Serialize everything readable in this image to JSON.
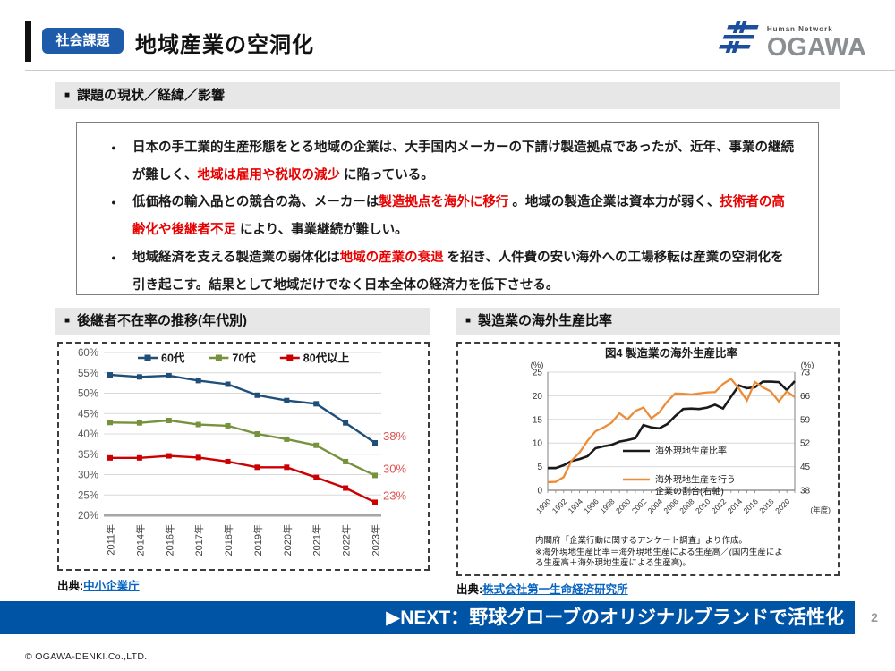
{
  "header": {
    "badge": "社会課題",
    "title": "地域産業の空洞化",
    "logo": {
      "tagline": "Human Network",
      "wordmark": "OGAWA"
    }
  },
  "sections": {
    "marker": "■",
    "issues_title": "課題の現状／経緯／影響",
    "left_chart_title": "後継者不在率の推移(年代別)",
    "right_chart_title": "製造業の海外生産比率"
  },
  "points": {
    "bullet_char": "●",
    "red_color": "#e60000",
    "bullets": [
      {
        "segments": [
          {
            "t": "日本の手工業的生産形態をとる地域の企業は、大手国内メーカーの下請け製造拠点であったが、近年、事業の継続が難しく、",
            "red": false
          },
          {
            "t": "地域は雇用や税収の減少",
            "red": true
          },
          {
            "t": " に陥っている。",
            "red": false
          }
        ]
      },
      {
        "segments": [
          {
            "t": "低価格の輸入品との競合の為、メーカーは",
            "red": false
          },
          {
            "t": "製造拠点を海外に移行",
            "red": true
          },
          {
            "t": " 。地域の製造企業は資本力が弱く、",
            "red": false
          },
          {
            "t": "技術者の高齢化や後継者不足",
            "red": true
          },
          {
            "t": " により、事業継続が難しい。",
            "red": false
          }
        ]
      },
      {
        "segments": [
          {
            "t": "地域経済を支える製造業の弱体化は",
            "red": false
          },
          {
            "t": "地域の産業の衰退",
            "red": true
          },
          {
            "t": " を招き、人件費の安い海外への工場移転は産業の空洞化を引き起こす。結果として地域だけでなく日本全体の経済力を低下させる。",
            "red": false
          }
        ]
      }
    ]
  },
  "sources": {
    "label": "出典:",
    "left_link": "中小企業庁",
    "right_link": "株式会社第一生命経済研究所"
  },
  "footer": {
    "next_banner": "▶NEXT：野球グローブのオリジナルブランドで活性化",
    "page_number": "2",
    "copyright": "© OGAWA-DENKI.Co.,LTD."
  },
  "chart_data": [
    {
      "type": "line",
      "title": "後継者不在率の推移(年代別)",
      "categories": [
        "2011年",
        "2014年",
        "2016年",
        "2017年",
        "2018年",
        "2019年",
        "2020年",
        "2021年",
        "2022年",
        "2023年"
      ],
      "ylim": [
        20,
        60
      ],
      "ytick_step": 5,
      "ytick_suffix": "%",
      "grid": true,
      "legend_position": "top",
      "end_label_color": "#e05252",
      "series": [
        {
          "name": "60代",
          "color": "#1f4e79",
          "values": [
            54.5,
            54.0,
            54.3,
            53.1,
            52.2,
            49.5,
            48.2,
            47.4,
            42.7,
            37.8
          ],
          "end_label": "38%"
        },
        {
          "name": "70代",
          "color": "#76923c",
          "values": [
            42.8,
            42.7,
            43.3,
            42.3,
            42.0,
            40.0,
            38.7,
            37.2,
            33.2,
            29.8
          ],
          "end_label": "30%"
        },
        {
          "name": "80代以上",
          "color": "#cc0000",
          "values": [
            34.1,
            34.1,
            34.6,
            34.2,
            33.2,
            31.8,
            31.8,
            29.3,
            26.7,
            23.2
          ],
          "end_label": "23%"
        }
      ]
    },
    {
      "type": "line",
      "title": "図4  製造業の海外生産比率",
      "x": [
        1990,
        1991,
        1992,
        1993,
        1994,
        1995,
        1996,
        1997,
        1998,
        1999,
        2000,
        2001,
        2002,
        2003,
        2004,
        2005,
        2006,
        2007,
        2008,
        2009,
        2010,
        2011,
        2012,
        2013,
        2014,
        2015,
        2016,
        2017,
        2018,
        2019,
        2020,
        2021
      ],
      "xtick_labels": [
        "1990",
        "1992",
        "1994",
        "1996",
        "1998",
        "2000",
        "2002",
        "2004",
        "2006",
        "2008",
        "2010",
        "2012",
        "2014",
        "2016",
        "2018",
        "2020"
      ],
      "x_axis_unit": "(年度)",
      "left_axis": {
        "label": "(%)",
        "lim": [
          0,
          25
        ],
        "ticks": [
          0,
          5,
          10,
          15,
          20,
          25
        ]
      },
      "right_axis": {
        "label": "(%)",
        "lim": [
          38,
          73
        ],
        "ticks": [
          38,
          45,
          52,
          59,
          66,
          73
        ]
      },
      "series": [
        {
          "name": "海外現地生産比率",
          "name_lines": [
            "海外現地生産比率"
          ],
          "axis": "left",
          "color": "#1a1a1a",
          "values": [
            4.7,
            4.7,
            5.3,
            6.2,
            6.6,
            7.2,
            8.9,
            9.3,
            9.6,
            10.3,
            10.6,
            11.0,
            13.8,
            13.3,
            13.1,
            14.0,
            15.7,
            17.2,
            17.3,
            17.2,
            17.5,
            18.1,
            17.3,
            19.8,
            22.2,
            21.6,
            21.8,
            23.0,
            23.0,
            22.9,
            21.2,
            23.1
          ]
        },
        {
          "name": "海外現地生産を行う企業の割合(右軸)",
          "name_lines": [
            "海外現地生産を行う",
            "企業の割合(右軸)"
          ],
          "axis": "right",
          "color": "#ed8c37",
          "values": [
            40.4,
            40.5,
            41.9,
            46.8,
            49.2,
            52.7,
            55.5,
            56.6,
            58.0,
            60.8,
            59.0,
            61.5,
            62.5,
            59.3,
            61.1,
            64.3,
            66.7,
            66.6,
            66.4,
            66.7,
            67.0,
            67.1,
            69.5,
            71.0,
            68.1,
            64.6,
            70.1,
            68.5,
            67.3,
            64.3,
            67.3,
            65.6
          ]
        }
      ],
      "note": "内閣府「企業行動に関するアンケート調査」より作成。\n※海外現地生産比率＝海外現地生産による生産高／(国内生産によ\nる生産高＋海外現地生産による生産高)。"
    }
  ]
}
